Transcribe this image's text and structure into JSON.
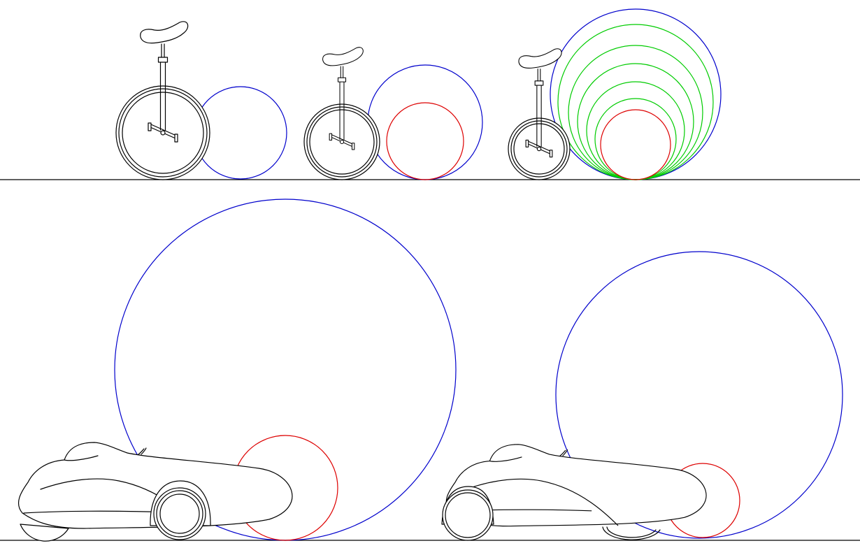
{
  "colors": {
    "outer": "#0000cc",
    "inner": "#dd0000",
    "step": "#00cc00",
    "ink": "#000000",
    "background": "#ffffff"
  },
  "rows": [
    {
      "name": "unicycles",
      "panels": [
        {
          "vehicle": "unicycle",
          "outer_circle": true,
          "inner_circle": false,
          "step_circles": 0
        },
        {
          "vehicle": "unicycle",
          "outer_circle": true,
          "inner_circle": true,
          "step_circles": 0
        },
        {
          "vehicle": "unicycle",
          "outer_circle": true,
          "inner_circle": true,
          "step_circles": 5
        }
      ]
    },
    {
      "name": "velomobiles",
      "panels": [
        {
          "vehicle": "velomobile",
          "outer_circle": true,
          "inner_circle": true,
          "step_circles": 0
        },
        {
          "vehicle": "velomobile",
          "outer_circle": true,
          "inner_circle": true,
          "step_circles": 0
        }
      ]
    }
  ]
}
